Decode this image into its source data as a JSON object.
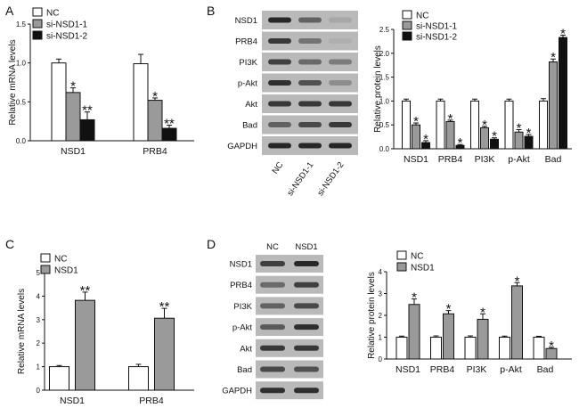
{
  "panels": [
    {
      "letter": "A"
    },
    {
      "letter": "B"
    },
    {
      "letter": "C"
    },
    {
      "letter": "D"
    }
  ],
  "blots": {
    "B": {
      "rows": [
        "NSD1",
        "PRB4",
        "PI3K",
        "p-Akt",
        "Akt",
        "Bad",
        "GAPDH"
      ],
      "lanes": [
        "NC",
        "si-NSD1-1",
        "si-NSD1-2"
      ]
    },
    "D": {
      "rows": [
        "NSD1",
        "PRB4",
        "PI3K",
        "p-Akt",
        "Akt",
        "Bad",
        "GAPDH"
      ],
      "lanes": [
        "NC",
        "NSD1"
      ]
    }
  },
  "chart_data": [
    {
      "panel": "A",
      "type": "bar",
      "ylabel": "Relative mRNA levels",
      "ylim": [
        0,
        1.5
      ],
      "yticks": [
        "0.0",
        "0.5",
        "1.0",
        "1.5"
      ],
      "categories": [
        "NSD1",
        "PRB4"
      ],
      "series": [
        {
          "name": "NC",
          "color": "#ffffff",
          "values": [
            1.0,
            0.99
          ],
          "errors": [
            0.05,
            0.12
          ]
        },
        {
          "name": "si-NSD1-1",
          "color": "#9a9a9a",
          "values": [
            0.62,
            0.52
          ],
          "errors": [
            0.06,
            0.03
          ]
        },
        {
          "name": "si-NSD1-2",
          "color": "#111111",
          "values": [
            0.27,
            0.16
          ],
          "errors": [
            0.1,
            0.04
          ]
        }
      ],
      "annotations": [
        [
          "",
          "*",
          "**"
        ],
        [
          "",
          "*",
          "**"
        ]
      ]
    },
    {
      "panel": "B",
      "type": "bar",
      "ylabel": "Relative protein levels",
      "ylim": [
        0,
        2.5
      ],
      "yticks": [
        "0.0",
        "0.5",
        "1.0",
        "1.5",
        "2.0",
        "2.5"
      ],
      "categories": [
        "NSD1",
        "PRB4",
        "PI3K",
        "p-Akt",
        "Bad"
      ],
      "series": [
        {
          "name": "NC",
          "color": "#ffffff",
          "values": [
            1.0,
            1.0,
            1.0,
            1.0,
            1.0
          ],
          "errors": [
            0.04,
            0.04,
            0.04,
            0.04,
            0.05
          ]
        },
        {
          "name": "si-NSD1-1",
          "color": "#9a9a9a",
          "values": [
            0.5,
            0.57,
            0.44,
            0.35,
            1.82
          ],
          "errors": [
            0.04,
            0.03,
            0.03,
            0.05,
            0.06
          ]
        },
        {
          "name": "si-NSD1-2",
          "color": "#111111",
          "values": [
            0.13,
            0.07,
            0.2,
            0.26,
            2.33
          ],
          "errors": [
            0.04,
            0.02,
            0.03,
            0.04,
            0.05
          ]
        }
      ],
      "annotations": [
        [
          "",
          "*",
          "*"
        ],
        [
          "",
          "*",
          "*"
        ],
        [
          "",
          "*",
          "*"
        ],
        [
          "",
          "*",
          "*"
        ],
        [
          "",
          "*",
          "*"
        ]
      ]
    },
    {
      "panel": "C",
      "type": "bar",
      "ylabel": "Relative mRNA levels",
      "ylim": [
        0,
        5
      ],
      "yticks": [
        "0",
        "1",
        "2",
        "3",
        "4",
        "5"
      ],
      "categories": [
        "NSD1",
        "PRB4"
      ],
      "series": [
        {
          "name": "NC",
          "color": "#ffffff",
          "values": [
            1.0,
            1.0
          ],
          "errors": [
            0.05,
            0.1
          ]
        },
        {
          "name": "NSD1",
          "color": "#9a9a9a",
          "values": [
            3.82,
            3.06
          ],
          "errors": [
            0.35,
            0.42
          ]
        }
      ],
      "annotations": [
        [
          "",
          "**"
        ],
        [
          "",
          "**"
        ]
      ]
    },
    {
      "panel": "D",
      "type": "bar",
      "ylabel": "Relative protein levels",
      "ylim": [
        0,
        4
      ],
      "yticks": [
        "0",
        "1",
        "2",
        "3",
        "4"
      ],
      "categories": [
        "NSD1",
        "PRB4",
        "PI3K",
        "p-Akt",
        "Bad"
      ],
      "series": [
        {
          "name": "NC",
          "color": "#ffffff",
          "values": [
            1.0,
            1.0,
            1.0,
            1.0,
            1.0
          ],
          "errors": [
            0.05,
            0.06,
            0.06,
            0.05,
            0.04
          ]
        },
        {
          "name": "NSD1",
          "color": "#9a9a9a",
          "values": [
            2.5,
            2.07,
            1.82,
            3.35,
            0.48
          ],
          "errors": [
            0.25,
            0.15,
            0.25,
            0.15,
            0.06
          ]
        }
      ],
      "annotations": [
        [
          "",
          "*"
        ],
        [
          "",
          "*"
        ],
        [
          "",
          "*"
        ],
        [
          "",
          "*"
        ],
        [
          "",
          "*"
        ]
      ]
    }
  ]
}
